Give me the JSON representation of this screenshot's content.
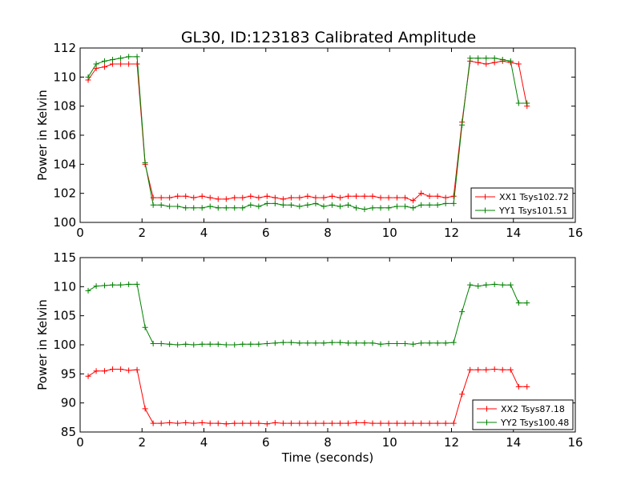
{
  "title": "GL30, ID:123183 Calibrated Amplitude",
  "chart_data": [
    {
      "type": "line",
      "ylabel": "Power in Kelvin",
      "xlabel": "",
      "xlim": [
        0,
        16
      ],
      "ylim": [
        100,
        112
      ],
      "xticks": [
        "0",
        "2",
        "4",
        "6",
        "8",
        "10",
        "12",
        "14",
        "16"
      ],
      "yticks": [
        "100",
        "102",
        "104",
        "106",
        "108",
        "110",
        "112"
      ],
      "grid": false,
      "legend_position": "lower-right",
      "x": [
        0.26,
        0.52,
        0.79,
        1.05,
        1.31,
        1.57,
        1.84,
        2.1,
        2.36,
        2.62,
        2.89,
        3.15,
        3.41,
        3.67,
        3.94,
        4.2,
        4.46,
        4.72,
        4.99,
        5.25,
        5.51,
        5.77,
        6.04,
        6.3,
        6.56,
        6.82,
        7.09,
        7.35,
        7.61,
        7.87,
        8.14,
        8.4,
        8.66,
        8.92,
        9.19,
        9.45,
        9.71,
        9.97,
        10.24,
        10.5,
        10.76,
        11.02,
        11.29,
        11.55,
        11.81,
        12.07,
        12.34,
        12.6,
        12.86,
        13.12,
        13.39,
        13.65,
        13.91,
        14.17,
        14.44
      ],
      "series": [
        {
          "name": "XX1 Tsys102.72",
          "color": "#ff0000",
          "values": [
            109.8,
            110.6,
            110.7,
            110.9,
            110.9,
            110.9,
            110.9,
            104.0,
            101.7,
            101.7,
            101.7,
            101.8,
            101.8,
            101.7,
            101.8,
            101.7,
            101.6,
            101.6,
            101.7,
            101.7,
            101.8,
            101.7,
            101.8,
            101.7,
            101.6,
            101.7,
            101.7,
            101.8,
            101.7,
            101.7,
            101.8,
            101.7,
            101.8,
            101.8,
            101.8,
            101.8,
            101.7,
            101.7,
            101.7,
            101.7,
            101.5,
            102.0,
            101.8,
            101.8,
            101.7,
            101.8,
            106.9,
            111.1,
            111.0,
            110.9,
            111.0,
            111.1,
            111.0,
            110.9,
            108.0
          ]
        },
        {
          "name": "YY1 Tsys101.51",
          "color": "#008000",
          "values": [
            110.0,
            110.9,
            111.1,
            111.2,
            111.3,
            111.4,
            111.4,
            104.1,
            101.2,
            101.2,
            101.1,
            101.1,
            101.0,
            101.0,
            101.0,
            101.1,
            101.0,
            101.0,
            101.0,
            101.0,
            101.2,
            101.1,
            101.3,
            101.3,
            101.2,
            101.2,
            101.1,
            101.2,
            101.3,
            101.1,
            101.2,
            101.1,
            101.2,
            101.0,
            100.9,
            101.0,
            101.0,
            101.0,
            101.1,
            101.1,
            101.0,
            101.2,
            101.2,
            101.2,
            101.3,
            101.3,
            106.7,
            111.3,
            111.3,
            111.3,
            111.3,
            111.2,
            111.1,
            108.2,
            108.2
          ]
        }
      ]
    },
    {
      "type": "line",
      "ylabel": "Power in Kelvin",
      "xlabel": "Time (seconds)",
      "xlim": [
        0,
        16
      ],
      "ylim": [
        85,
        115
      ],
      "xticks": [
        "0",
        "2",
        "4",
        "6",
        "8",
        "10",
        "12",
        "14",
        "16"
      ],
      "yticks": [
        "85",
        "90",
        "95",
        "100",
        "105",
        "110",
        "115"
      ],
      "grid": false,
      "legend_position": "lower-right",
      "x": [
        0.26,
        0.52,
        0.79,
        1.05,
        1.31,
        1.57,
        1.84,
        2.1,
        2.36,
        2.62,
        2.89,
        3.15,
        3.41,
        3.67,
        3.94,
        4.2,
        4.46,
        4.72,
        4.99,
        5.25,
        5.51,
        5.77,
        6.04,
        6.3,
        6.56,
        6.82,
        7.09,
        7.35,
        7.61,
        7.87,
        8.14,
        8.4,
        8.66,
        8.92,
        9.19,
        9.45,
        9.71,
        9.97,
        10.24,
        10.5,
        10.76,
        11.02,
        11.29,
        11.55,
        11.81,
        12.07,
        12.34,
        12.6,
        12.86,
        13.12,
        13.39,
        13.65,
        13.91,
        14.17,
        14.44
      ],
      "series": [
        {
          "name": "XX2 Tsys87.18",
          "color": "#ff0000",
          "values": [
            94.6,
            95.5,
            95.5,
            95.8,
            95.8,
            95.6,
            95.7,
            89.0,
            86.5,
            86.5,
            86.6,
            86.5,
            86.6,
            86.5,
            86.6,
            86.5,
            86.5,
            86.4,
            86.5,
            86.5,
            86.5,
            86.5,
            86.4,
            86.6,
            86.5,
            86.5,
            86.5,
            86.5,
            86.5,
            86.5,
            86.5,
            86.5,
            86.5,
            86.6,
            86.6,
            86.5,
            86.5,
            86.5,
            86.5,
            86.5,
            86.5,
            86.5,
            86.5,
            86.5,
            86.5,
            86.5,
            91.5,
            95.7,
            95.7,
            95.7,
            95.8,
            95.7,
            95.7,
            92.8,
            92.8
          ]
        },
        {
          "name": "YY2 Tsys100.48",
          "color": "#008000",
          "values": [
            109.3,
            110.1,
            110.2,
            110.3,
            110.3,
            110.4,
            110.4,
            103.0,
            100.2,
            100.2,
            100.1,
            100.0,
            100.1,
            100.0,
            100.1,
            100.1,
            100.1,
            100.0,
            100.0,
            100.1,
            100.1,
            100.1,
            100.2,
            100.3,
            100.4,
            100.4,
            100.3,
            100.3,
            100.3,
            100.3,
            100.4,
            100.4,
            100.3,
            100.3,
            100.3,
            100.3,
            100.1,
            100.2,
            100.2,
            100.2,
            100.1,
            100.3,
            100.3,
            100.3,
            100.3,
            100.4,
            105.7,
            110.3,
            110.1,
            110.3,
            110.4,
            110.3,
            110.3,
            107.2,
            107.2
          ]
        }
      ]
    }
  ]
}
